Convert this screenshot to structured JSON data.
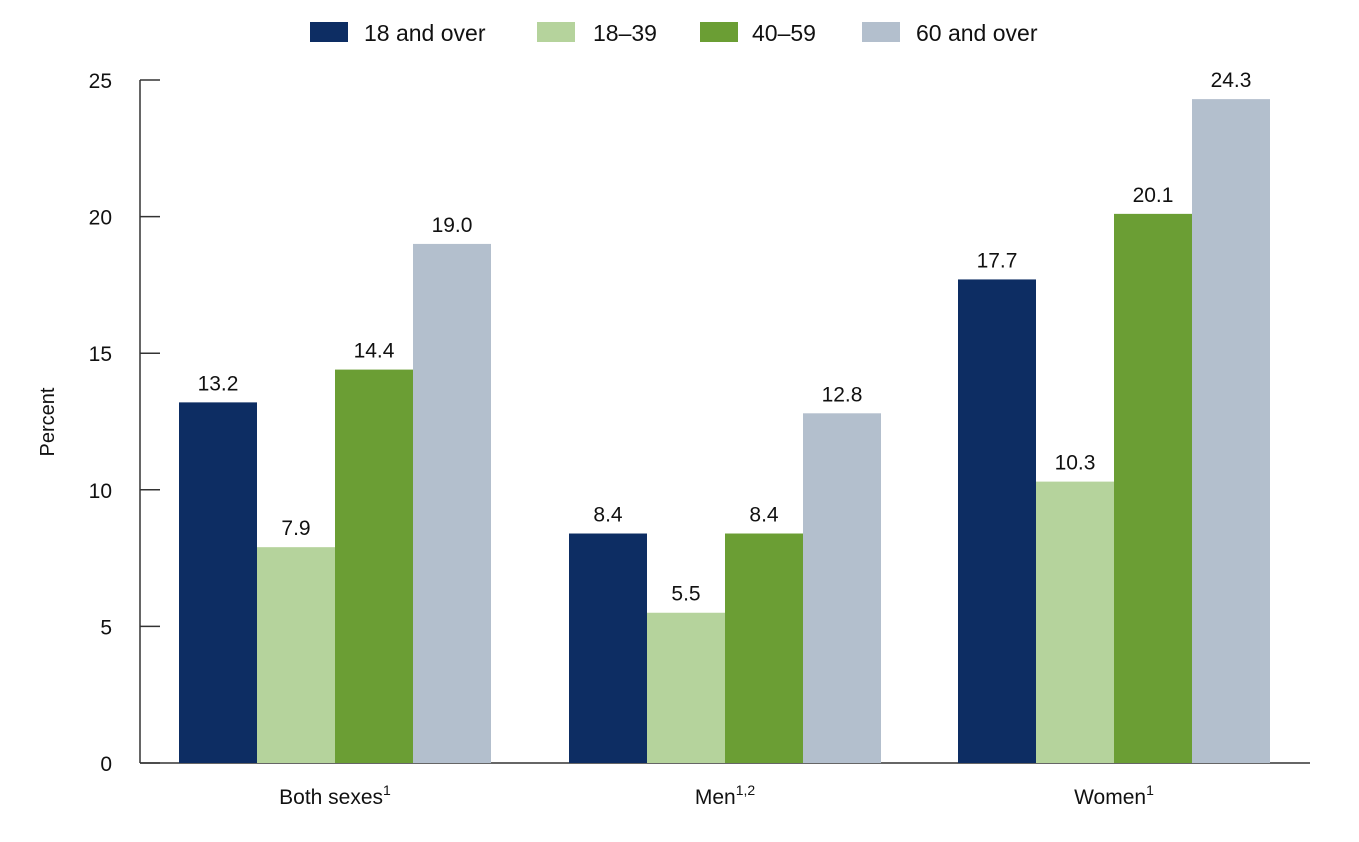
{
  "chart_data": {
    "type": "bar",
    "title": "",
    "xlabel": "",
    "ylabel": "Percent",
    "ylim": [
      0,
      25
    ],
    "yticks": [
      0,
      5,
      10,
      15,
      20,
      25
    ],
    "grid": false,
    "legend_position": "top",
    "categories": [
      {
        "label": "Both sexes",
        "sup": "1"
      },
      {
        "label": "Men",
        "sup": "1,2"
      },
      {
        "label": "Women",
        "sup": "1"
      }
    ],
    "series": [
      {
        "name": "18 and over",
        "color": "#0d2d63",
        "values": [
          13.2,
          8.4,
          17.7
        ],
        "labels": [
          "13.2",
          "8.4",
          "17.7"
        ]
      },
      {
        "name": "18–39",
        "color": "#b5d39c",
        "values": [
          7.9,
          5.5,
          10.3
        ],
        "labels": [
          "7.9",
          "5.5",
          "10.3"
        ]
      },
      {
        "name": "40–59",
        "color": "#6b9e34",
        "values": [
          14.4,
          8.4,
          20.1
        ],
        "labels": [
          "14.4",
          "8.4",
          "20.1"
        ]
      },
      {
        "name": "60 and over",
        "color": "#b3bfcd",
        "values": [
          19.0,
          12.8,
          24.3
        ],
        "labels": [
          "19.0",
          "12.8",
          "24.3"
        ]
      }
    ]
  }
}
